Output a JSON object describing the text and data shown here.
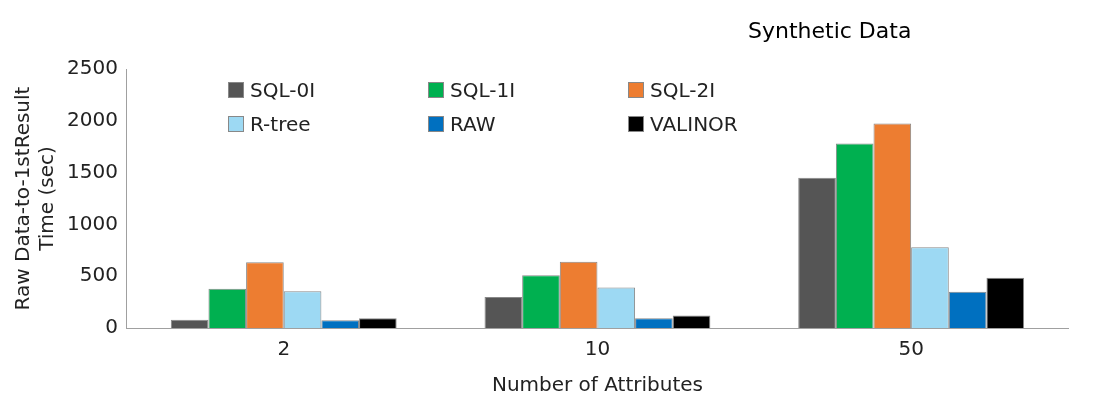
{
  "chart_data": {
    "type": "bar",
    "title": "Synthetic Data",
    "xlabel": "Number of Attributes",
    "ylabel": "Raw Data-to-1stResult Time (sec)",
    "categories": [
      "2",
      "10",
      "50"
    ],
    "series": [
      {
        "name": "SQL-0I",
        "color": "#555555",
        "values": [
          80,
          300,
          1450
        ]
      },
      {
        "name": "SQL-1I",
        "color": "#00b050",
        "values": [
          380,
          510,
          1780
        ]
      },
      {
        "name": "SQL-2I",
        "color": "#ed7d31",
        "values": [
          635,
          640,
          1975
        ]
      },
      {
        "name": "R-tree",
        "color": "#9dd9f3",
        "values": [
          355,
          390,
          780
        ]
      },
      {
        "name": "RAW",
        "color": "#0070c0",
        "values": [
          75,
          95,
          350
        ]
      },
      {
        "name": "VALINOR",
        "color": "#000000",
        "values": [
          95,
          120,
          485
        ]
      }
    ],
    "ylim": [
      0,
      2500
    ],
    "yticks": [
      0,
      500,
      1000,
      1500,
      2000,
      2500
    ],
    "grid": false,
    "legend": "top left"
  }
}
